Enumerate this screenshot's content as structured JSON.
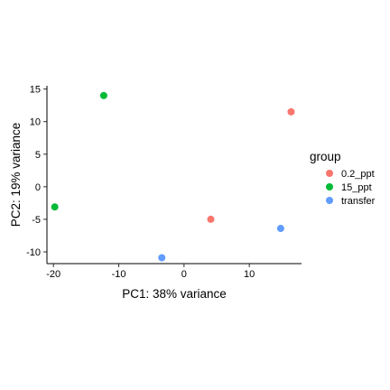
{
  "chart_data": {
    "type": "scatter",
    "xlabel": "PC1: 38% variance",
    "ylabel": "PC2: 19% variance",
    "xlim": [
      -21.0,
      18.0
    ],
    "ylim": [
      -11.8,
      15.5
    ],
    "x_ticks": [
      -20,
      -10,
      0,
      10
    ],
    "y_ticks": [
      -10,
      -5,
      0,
      5,
      10,
      15
    ],
    "grid": false,
    "legend": {
      "title": "group",
      "placement": "right"
    },
    "series": [
      {
        "name": "0.2_ppt",
        "color": "#F8766D",
        "points": [
          {
            "x": 16.4,
            "y": 11.5
          },
          {
            "x": 4.1,
            "y": -5.0
          }
        ]
      },
      {
        "name": "15_ppt",
        "color": "#00BA38",
        "points": [
          {
            "x": -12.3,
            "y": 14.0
          },
          {
            "x": -19.8,
            "y": -3.1
          }
        ]
      },
      {
        "name": "transfer",
        "color": "#619CFF",
        "points": [
          {
            "x": 14.8,
            "y": -6.4
          },
          {
            "x": -3.4,
            "y": -10.9
          }
        ]
      }
    ]
  }
}
